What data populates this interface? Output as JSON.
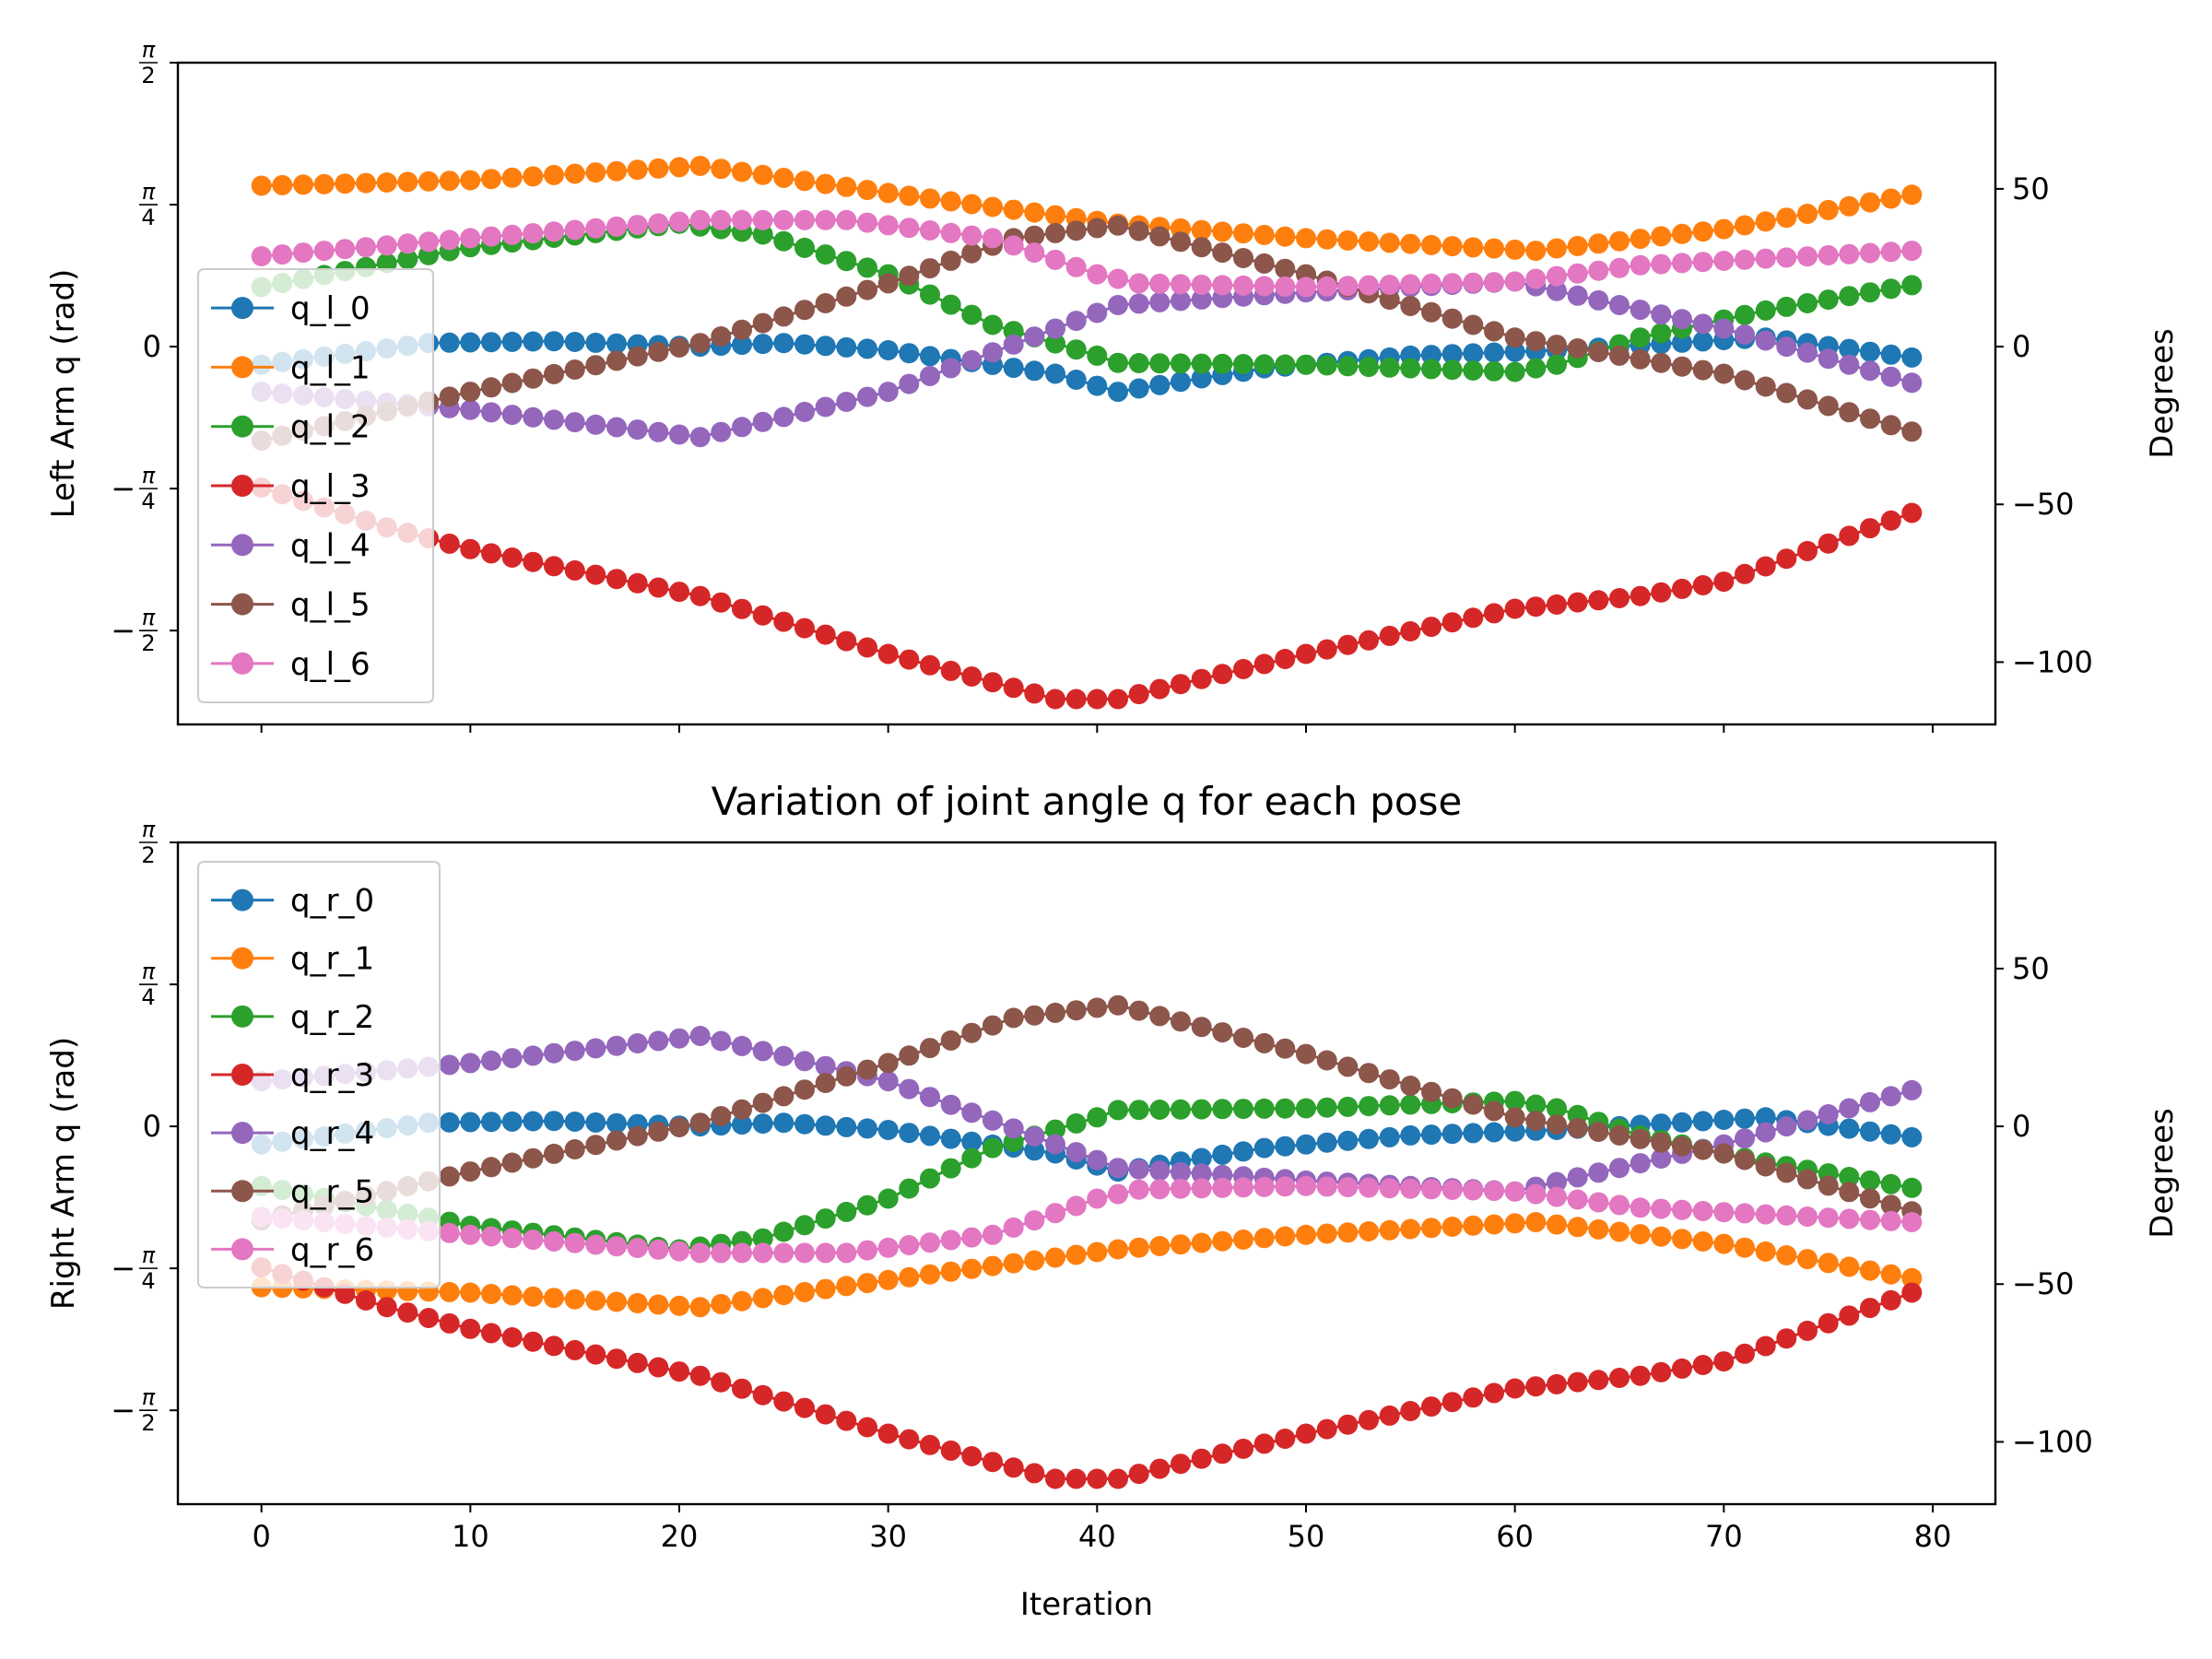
{
  "chart_data": [
    {
      "type": "line",
      "title": "",
      "xlabel": "",
      "ylabel": "Left Arm q (rad)",
      "ylabel_right": "Degrees",
      "xlim": [
        -4,
        83
      ],
      "ylim_rad": [
        -2.09,
        1.5708
      ],
      "yticks_left": [
        {
          "value": 1.5708,
          "num": "π",
          "den": "2",
          "neg": false
        },
        {
          "value": 0.7854,
          "num": "π",
          "den": "4",
          "neg": false
        },
        {
          "value": 0,
          "label": "0"
        },
        {
          "value": -0.7854,
          "num": "π",
          "den": "4",
          "neg": true
        },
        {
          "value": -1.5708,
          "num": "π",
          "den": "2",
          "neg": true
        }
      ],
      "yticks_right": [
        {
          "value": 50,
          "label": "50"
        },
        {
          "value": 0,
          "label": "0"
        },
        {
          "value": -50,
          "label": "−50"
        },
        {
          "value": -100,
          "label": "−100"
        }
      ],
      "xticks": [
        0,
        10,
        20,
        30,
        40,
        50,
        60,
        70,
        80
      ],
      "show_xtick_labels": false,
      "grid": false,
      "legend_position": "left",
      "series": [
        {
          "name": "q_l_0",
          "color": "#1f77b4",
          "keypoints": [
            [
              0,
              -0.1
            ],
            [
              8,
              0.02
            ],
            [
              14,
              0.03
            ],
            [
              21,
              0.0
            ],
            [
              25,
              0.02
            ],
            [
              30,
              -0.02
            ],
            [
              38,
              -0.15
            ],
            [
              41,
              -0.25
            ],
            [
              48,
              -0.12
            ],
            [
              55,
              -0.05
            ],
            [
              62,
              -0.02
            ],
            [
              72,
              0.05
            ],
            [
              79,
              -0.06
            ]
          ]
        },
        {
          "name": "q_l_1",
          "color": "#ff7f0e",
          "keypoints": [
            [
              0,
              0.89
            ],
            [
              10,
              0.92
            ],
            [
              21,
              1.0
            ],
            [
              30,
              0.85
            ],
            [
              41,
              0.68
            ],
            [
              50,
              0.6
            ],
            [
              61,
              0.53
            ],
            [
              70,
              0.65
            ],
            [
              79,
              0.84
            ]
          ]
        },
        {
          "name": "q_l_2",
          "color": "#2ca02c",
          "keypoints": [
            [
              0,
              0.33
            ],
            [
              10,
              0.55
            ],
            [
              20,
              0.68
            ],
            [
              24,
              0.62
            ],
            [
              30,
              0.4
            ],
            [
              35,
              0.12
            ],
            [
              40,
              -0.05
            ],
            [
              41,
              -0.09
            ],
            [
              50,
              -0.1
            ],
            [
              60,
              -0.14
            ],
            [
              62,
              -0.1
            ],
            [
              66,
              0.05
            ],
            [
              72,
              0.2
            ],
            [
              79,
              0.34
            ]
          ]
        },
        {
          "name": "q_l_3",
          "color": "#d62728",
          "keypoints": [
            [
              0,
              -0.78
            ],
            [
              6,
              -1.0
            ],
            [
              10,
              -1.12
            ],
            [
              21,
              -1.38
            ],
            [
              30,
              -1.7
            ],
            [
              38,
              -1.95
            ],
            [
              41,
              -1.95
            ],
            [
              50,
              -1.7
            ],
            [
              60,
              -1.45
            ],
            [
              66,
              -1.38
            ],
            [
              70,
              -1.3
            ],
            [
              79,
              -0.92
            ]
          ]
        },
        {
          "name": "q_l_4",
          "color": "#9467bd",
          "keypoints": [
            [
              0,
              -0.25
            ],
            [
              10,
              -0.35
            ],
            [
              21,
              -0.5
            ],
            [
              30,
              -0.25
            ],
            [
              41,
              0.23
            ],
            [
              50,
              0.3
            ],
            [
              60,
              0.36
            ],
            [
              70,
              0.1
            ],
            [
              79,
              -0.2
            ]
          ]
        },
        {
          "name": "q_l_5",
          "color": "#8c564b",
          "keypoints": [
            [
              0,
              -0.52
            ],
            [
              10,
              -0.25
            ],
            [
              21,
              0.02
            ],
            [
              30,
              0.35
            ],
            [
              36,
              0.6
            ],
            [
              41,
              0.67
            ],
            [
              50,
              0.4
            ],
            [
              60,
              0.05
            ],
            [
              70,
              -0.15
            ],
            [
              79,
              -0.47
            ]
          ]
        },
        {
          "name": "q_l_6",
          "color": "#e377c2",
          "keypoints": [
            [
              0,
              0.5
            ],
            [
              10,
              0.6
            ],
            [
              21,
              0.7
            ],
            [
              28,
              0.7
            ],
            [
              35,
              0.6
            ],
            [
              40,
              0.4
            ],
            [
              42,
              0.35
            ],
            [
              50,
              0.33
            ],
            [
              60,
              0.36
            ],
            [
              66,
              0.45
            ],
            [
              79,
              0.53
            ]
          ]
        }
      ]
    },
    {
      "type": "line",
      "title": "Variation of joint angle q for each pose",
      "xlabel": "Iteration",
      "ylabel": "Right Arm q (rad)",
      "ylabel_right": "Degrees",
      "xlim": [
        -4,
        83
      ],
      "ylim_rad": [
        -2.09,
        1.5708
      ],
      "yticks_left": [
        {
          "value": 1.5708,
          "num": "π",
          "den": "2",
          "neg": false
        },
        {
          "value": 0.7854,
          "num": "π",
          "den": "4",
          "neg": false
        },
        {
          "value": 0,
          "label": "0"
        },
        {
          "value": -0.7854,
          "num": "π",
          "den": "4",
          "neg": true
        },
        {
          "value": -1.5708,
          "num": "π",
          "den": "2",
          "neg": true
        }
      ],
      "yticks_right": [
        {
          "value": 50,
          "label": "50"
        },
        {
          "value": 0,
          "label": "0"
        },
        {
          "value": -50,
          "label": "−50"
        },
        {
          "value": -100,
          "label": "−100"
        }
      ],
      "xticks": [
        0,
        10,
        20,
        30,
        40,
        50,
        60,
        70,
        80
      ],
      "show_xtick_labels": true,
      "grid": false,
      "legend_position": "upper left",
      "series": [
        {
          "name": "q_r_0",
          "color": "#1f77b4",
          "keypoints": [
            [
              0,
              -0.1
            ],
            [
              8,
              0.02
            ],
            [
              14,
              0.03
            ],
            [
              21,
              0.0
            ],
            [
              25,
              0.02
            ],
            [
              30,
              -0.02
            ],
            [
              38,
              -0.15
            ],
            [
              41,
              -0.25
            ],
            [
              48,
              -0.12
            ],
            [
              55,
              -0.05
            ],
            [
              62,
              -0.02
            ],
            [
              72,
              0.05
            ],
            [
              79,
              -0.06
            ]
          ]
        },
        {
          "name": "q_r_1",
          "color": "#ff7f0e",
          "keypoints": [
            [
              0,
              -0.89
            ],
            [
              10,
              -0.92
            ],
            [
              21,
              -1.0
            ],
            [
              30,
              -0.85
            ],
            [
              41,
              -0.68
            ],
            [
              50,
              -0.6
            ],
            [
              61,
              -0.53
            ],
            [
              70,
              -0.65
            ],
            [
              79,
              -0.84
            ]
          ]
        },
        {
          "name": "q_r_2",
          "color": "#2ca02c",
          "keypoints": [
            [
              0,
              -0.33
            ],
            [
              10,
              -0.55
            ],
            [
              20,
              -0.68
            ],
            [
              24,
              -0.62
            ],
            [
              30,
              -0.4
            ],
            [
              35,
              -0.12
            ],
            [
              40,
              0.05
            ],
            [
              41,
              0.09
            ],
            [
              50,
              0.1
            ],
            [
              60,
              0.14
            ],
            [
              62,
              0.1
            ],
            [
              66,
              -0.05
            ],
            [
              72,
              -0.2
            ],
            [
              79,
              -0.34
            ]
          ]
        },
        {
          "name": "q_r_3",
          "color": "#d62728",
          "keypoints": [
            [
              0,
              -0.78
            ],
            [
              6,
              -1.0
            ],
            [
              10,
              -1.12
            ],
            [
              21,
              -1.38
            ],
            [
              30,
              -1.7
            ],
            [
              38,
              -1.95
            ],
            [
              41,
              -1.95
            ],
            [
              50,
              -1.7
            ],
            [
              60,
              -1.45
            ],
            [
              66,
              -1.38
            ],
            [
              70,
              -1.3
            ],
            [
              79,
              -0.92
            ]
          ]
        },
        {
          "name": "q_r_4",
          "color": "#9467bd",
          "keypoints": [
            [
              0,
              0.25
            ],
            [
              10,
              0.35
            ],
            [
              21,
              0.5
            ],
            [
              30,
              0.25
            ],
            [
              41,
              -0.23
            ],
            [
              50,
              -0.3
            ],
            [
              60,
              -0.36
            ],
            [
              70,
              -0.1
            ],
            [
              79,
              0.2
            ]
          ]
        },
        {
          "name": "q_r_5",
          "color": "#8c564b",
          "keypoints": [
            [
              0,
              -0.52
            ],
            [
              10,
              -0.25
            ],
            [
              21,
              0.02
            ],
            [
              30,
              0.35
            ],
            [
              36,
              0.6
            ],
            [
              41,
              0.67
            ],
            [
              50,
              0.4
            ],
            [
              60,
              0.05
            ],
            [
              70,
              -0.15
            ],
            [
              79,
              -0.47
            ]
          ]
        },
        {
          "name": "q_r_6",
          "color": "#e377c2",
          "keypoints": [
            [
              0,
              -0.5
            ],
            [
              10,
              -0.6
            ],
            [
              21,
              -0.7
            ],
            [
              28,
              -0.7
            ],
            [
              35,
              -0.6
            ],
            [
              40,
              -0.4
            ],
            [
              42,
              -0.35
            ],
            [
              50,
              -0.33
            ],
            [
              60,
              -0.36
            ],
            [
              66,
              -0.45
            ],
            [
              79,
              -0.53
            ]
          ]
        }
      ]
    }
  ]
}
